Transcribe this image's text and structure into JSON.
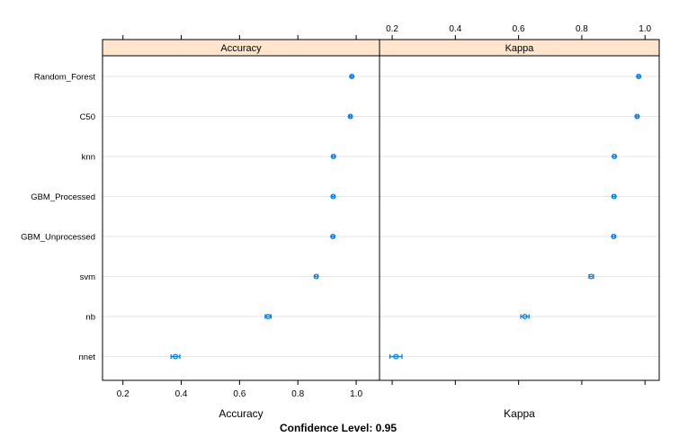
{
  "chart_data": {
    "type": "dotplot",
    "panels": [
      {
        "name": "Accuracy",
        "strip_label": "Accuracy",
        "xlabel": "Accuracy",
        "xlim": [
          0.13,
          1.08
        ],
        "ticks": [
          0.2,
          0.4,
          0.6,
          0.8,
          1.0
        ],
        "tick_labels": [
          "0.2",
          "0.4",
          "0.6",
          "0.8",
          "1.0"
        ],
        "tick_side": "bottom",
        "points": [
          {
            "model": "Random_Forest",
            "value": 0.985,
            "lower": 0.982,
            "upper": 0.988
          },
          {
            "model": "C50",
            "value": 0.98,
            "lower": 0.977,
            "upper": 0.983
          },
          {
            "model": "knn",
            "value": 0.922,
            "lower": 0.918,
            "upper": 0.926
          },
          {
            "model": "GBM_Processed",
            "value": 0.921,
            "lower": 0.917,
            "upper": 0.925
          },
          {
            "model": "GBM_Unprocessed",
            "value": 0.92,
            "lower": 0.916,
            "upper": 0.924
          },
          {
            "model": "svm",
            "value": 0.863,
            "lower": 0.858,
            "upper": 0.868
          },
          {
            "model": "nb",
            "value": 0.698,
            "lower": 0.688,
            "upper": 0.708
          },
          {
            "model": "nnet",
            "value": 0.38,
            "lower": 0.365,
            "upper": 0.395
          }
        ]
      },
      {
        "name": "Kappa",
        "strip_label": "Kappa",
        "xlabel": "Kappa",
        "xlim": [
          0.16,
          1.045
        ],
        "ticks": [
          0.2,
          0.4,
          0.6,
          0.8,
          1.0
        ],
        "tick_labels": [
          "0.2",
          "0.4",
          "0.6",
          "0.8",
          "1.0"
        ],
        "tick_side": "top",
        "points": [
          {
            "model": "Random_Forest",
            "value": 0.98,
            "lower": 0.977,
            "upper": 0.983
          },
          {
            "model": "C50",
            "value": 0.975,
            "lower": 0.972,
            "upper": 0.978
          },
          {
            "model": "knn",
            "value": 0.903,
            "lower": 0.899,
            "upper": 0.907
          },
          {
            "model": "GBM_Processed",
            "value": 0.902,
            "lower": 0.898,
            "upper": 0.906
          },
          {
            "model": "GBM_Unprocessed",
            "value": 0.901,
            "lower": 0.897,
            "upper": 0.905
          },
          {
            "model": "svm",
            "value": 0.83,
            "lower": 0.823,
            "upper": 0.837
          },
          {
            "model": "nb",
            "value": 0.62,
            "lower": 0.607,
            "upper": 0.633
          },
          {
            "model": "nnet",
            "value": 0.212,
            "lower": 0.193,
            "upper": 0.231
          }
        ]
      }
    ],
    "models": [
      "Random_Forest",
      "C50",
      "knn",
      "GBM_Processed",
      "GBM_Unprocessed",
      "svm",
      "nb",
      "nnet"
    ],
    "caption": "Confidence Level: 0.95",
    "colors": {
      "point": "#0080ff",
      "strip_bg": "#ffe5cc",
      "grid": "#e6e6e6",
      "frame": "#000000"
    }
  }
}
